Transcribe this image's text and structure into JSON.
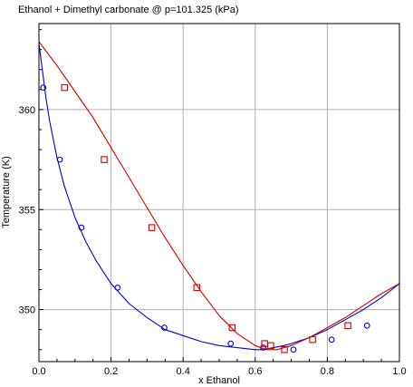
{
  "chart_data": {
    "type": "scatter",
    "title": "Ethanol + Dimethyl carbonate @ p=101.325 (kPa)",
    "xlabel": "x Ethanol",
    "ylabel": "Temperature (K)",
    "xlim": [
      0,
      1.0
    ],
    "ylim": [
      347.4,
      364.3
    ],
    "xticks": [
      0,
      0.2,
      0.4,
      0.6,
      0.8,
      1.0
    ],
    "xtick_labels": [
      "0.0",
      "0.2",
      "0.4",
      "0.6",
      "0.8",
      "1.0"
    ],
    "yticks": [
      350,
      355,
      360
    ],
    "ytick_labels": [
      "350",
      "355",
      "360"
    ],
    "grid": true,
    "legend": "none",
    "colors": {
      "liquid": "#0000cc",
      "vapor": "#cc0000",
      "grid": "#b0b0b0"
    },
    "series": [
      {
        "role": "bubble-curve",
        "kind": "line",
        "color": "#0000cc",
        "x": [
          0.0,
          0.01,
          0.02,
          0.03,
          0.05,
          0.07,
          0.1,
          0.13,
          0.16,
          0.2,
          0.25,
          0.3,
          0.35,
          0.4,
          0.45,
          0.5,
          0.55,
          0.6,
          0.62,
          0.65,
          0.68,
          0.7,
          0.75,
          0.8,
          0.85,
          0.9,
          0.95,
          1.0
        ],
        "y": [
          363.3,
          361.9,
          360.5,
          359.4,
          357.6,
          356.2,
          354.6,
          353.4,
          352.4,
          351.3,
          350.3,
          349.6,
          349.0,
          348.7,
          348.4,
          348.2,
          348.1,
          348.0,
          348.0,
          348.1,
          348.2,
          348.3,
          348.6,
          349.0,
          349.5,
          350.0,
          350.6,
          351.3
        ]
      },
      {
        "role": "dew-curve",
        "kind": "line",
        "color": "#cc0000",
        "x": [
          0.0,
          0.05,
          0.1,
          0.15,
          0.2,
          0.25,
          0.3,
          0.35,
          0.4,
          0.45,
          0.5,
          0.55,
          0.6,
          0.63,
          0.66,
          0.7,
          0.75,
          0.8,
          0.85,
          0.9,
          0.95,
          1.0
        ],
        "y": [
          363.4,
          362.2,
          360.9,
          359.6,
          358.1,
          356.6,
          355.1,
          353.6,
          352.2,
          350.9,
          349.7,
          348.8,
          348.2,
          348.0,
          348.0,
          348.2,
          348.6,
          349.1,
          349.6,
          350.2,
          350.8,
          351.3
        ]
      },
      {
        "role": "liquid-points",
        "kind": "scatter",
        "marker": "circle",
        "color": "#0000cc",
        "x": [
          0.012,
          0.058,
          0.118,
          0.218,
          0.348,
          0.532,
          0.622,
          0.706,
          0.812,
          0.91
        ],
        "y": [
          361.1,
          357.5,
          354.1,
          351.1,
          349.1,
          348.3,
          348.1,
          348.0,
          348.5,
          349.2
        ]
      },
      {
        "role": "vapor-points",
        "kind": "scatter",
        "marker": "square",
        "color": "#cc0000",
        "x": [
          0.071,
          0.181,
          0.313,
          0.438,
          0.536,
          0.626,
          0.643,
          0.681,
          0.759,
          0.857
        ],
        "y": [
          361.1,
          357.5,
          354.1,
          351.1,
          349.1,
          348.3,
          348.2,
          348.0,
          348.5,
          349.2
        ]
      }
    ]
  }
}
